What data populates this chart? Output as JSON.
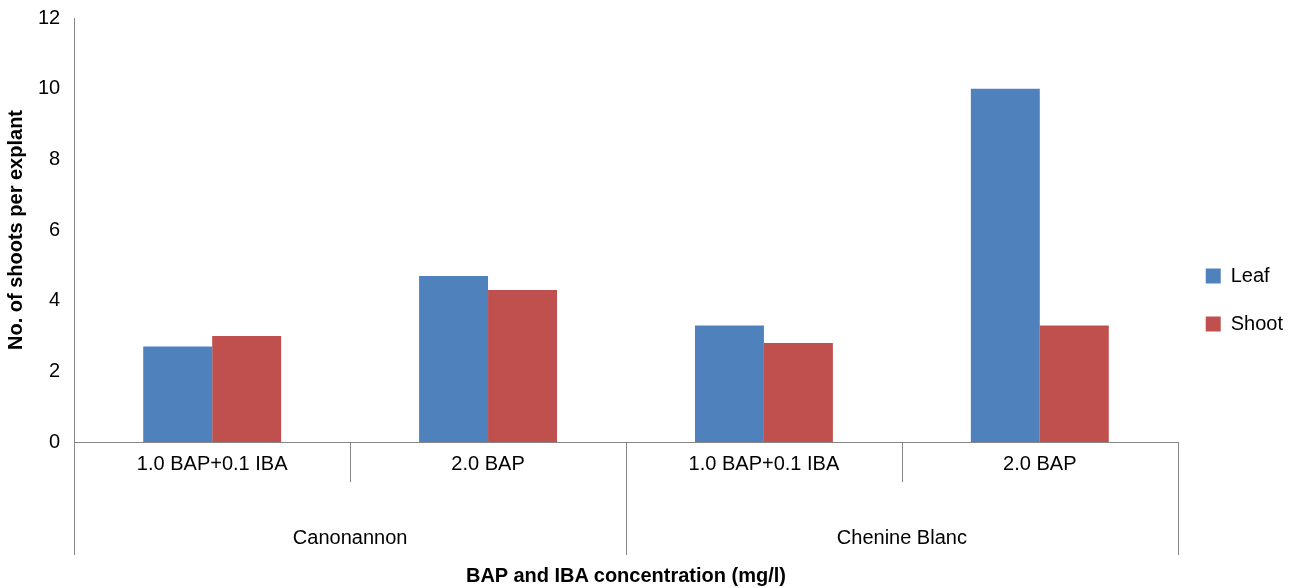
{
  "chart_data": {
    "type": "bar",
    "xlabel": "BAP and IBA concentration (mg/l)",
    "ylabel": "No. of shoots per explant",
    "categories": [
      "1.0 BAP+0.1 IBA",
      "2.0 BAP",
      "1.0 BAP+0.1 IBA",
      "2.0 BAP"
    ],
    "series": [
      {
        "name": "Leaf",
        "color": "#4f81bd",
        "values": [
          2.7,
          4.7,
          3.3,
          10
        ]
      },
      {
        "name": "Shoot",
        "color": "#c0504d",
        "values": [
          3.0,
          4.3,
          2.8,
          3.3
        ]
      }
    ],
    "annotations": [
      "Canonannon",
      "Chenine Blanc"
    ],
    "ylim": [
      0,
      12
    ],
    "yticks": [
      0,
      2,
      4,
      6,
      8,
      10,
      12
    ],
    "grid": false,
    "legend": "right"
  }
}
